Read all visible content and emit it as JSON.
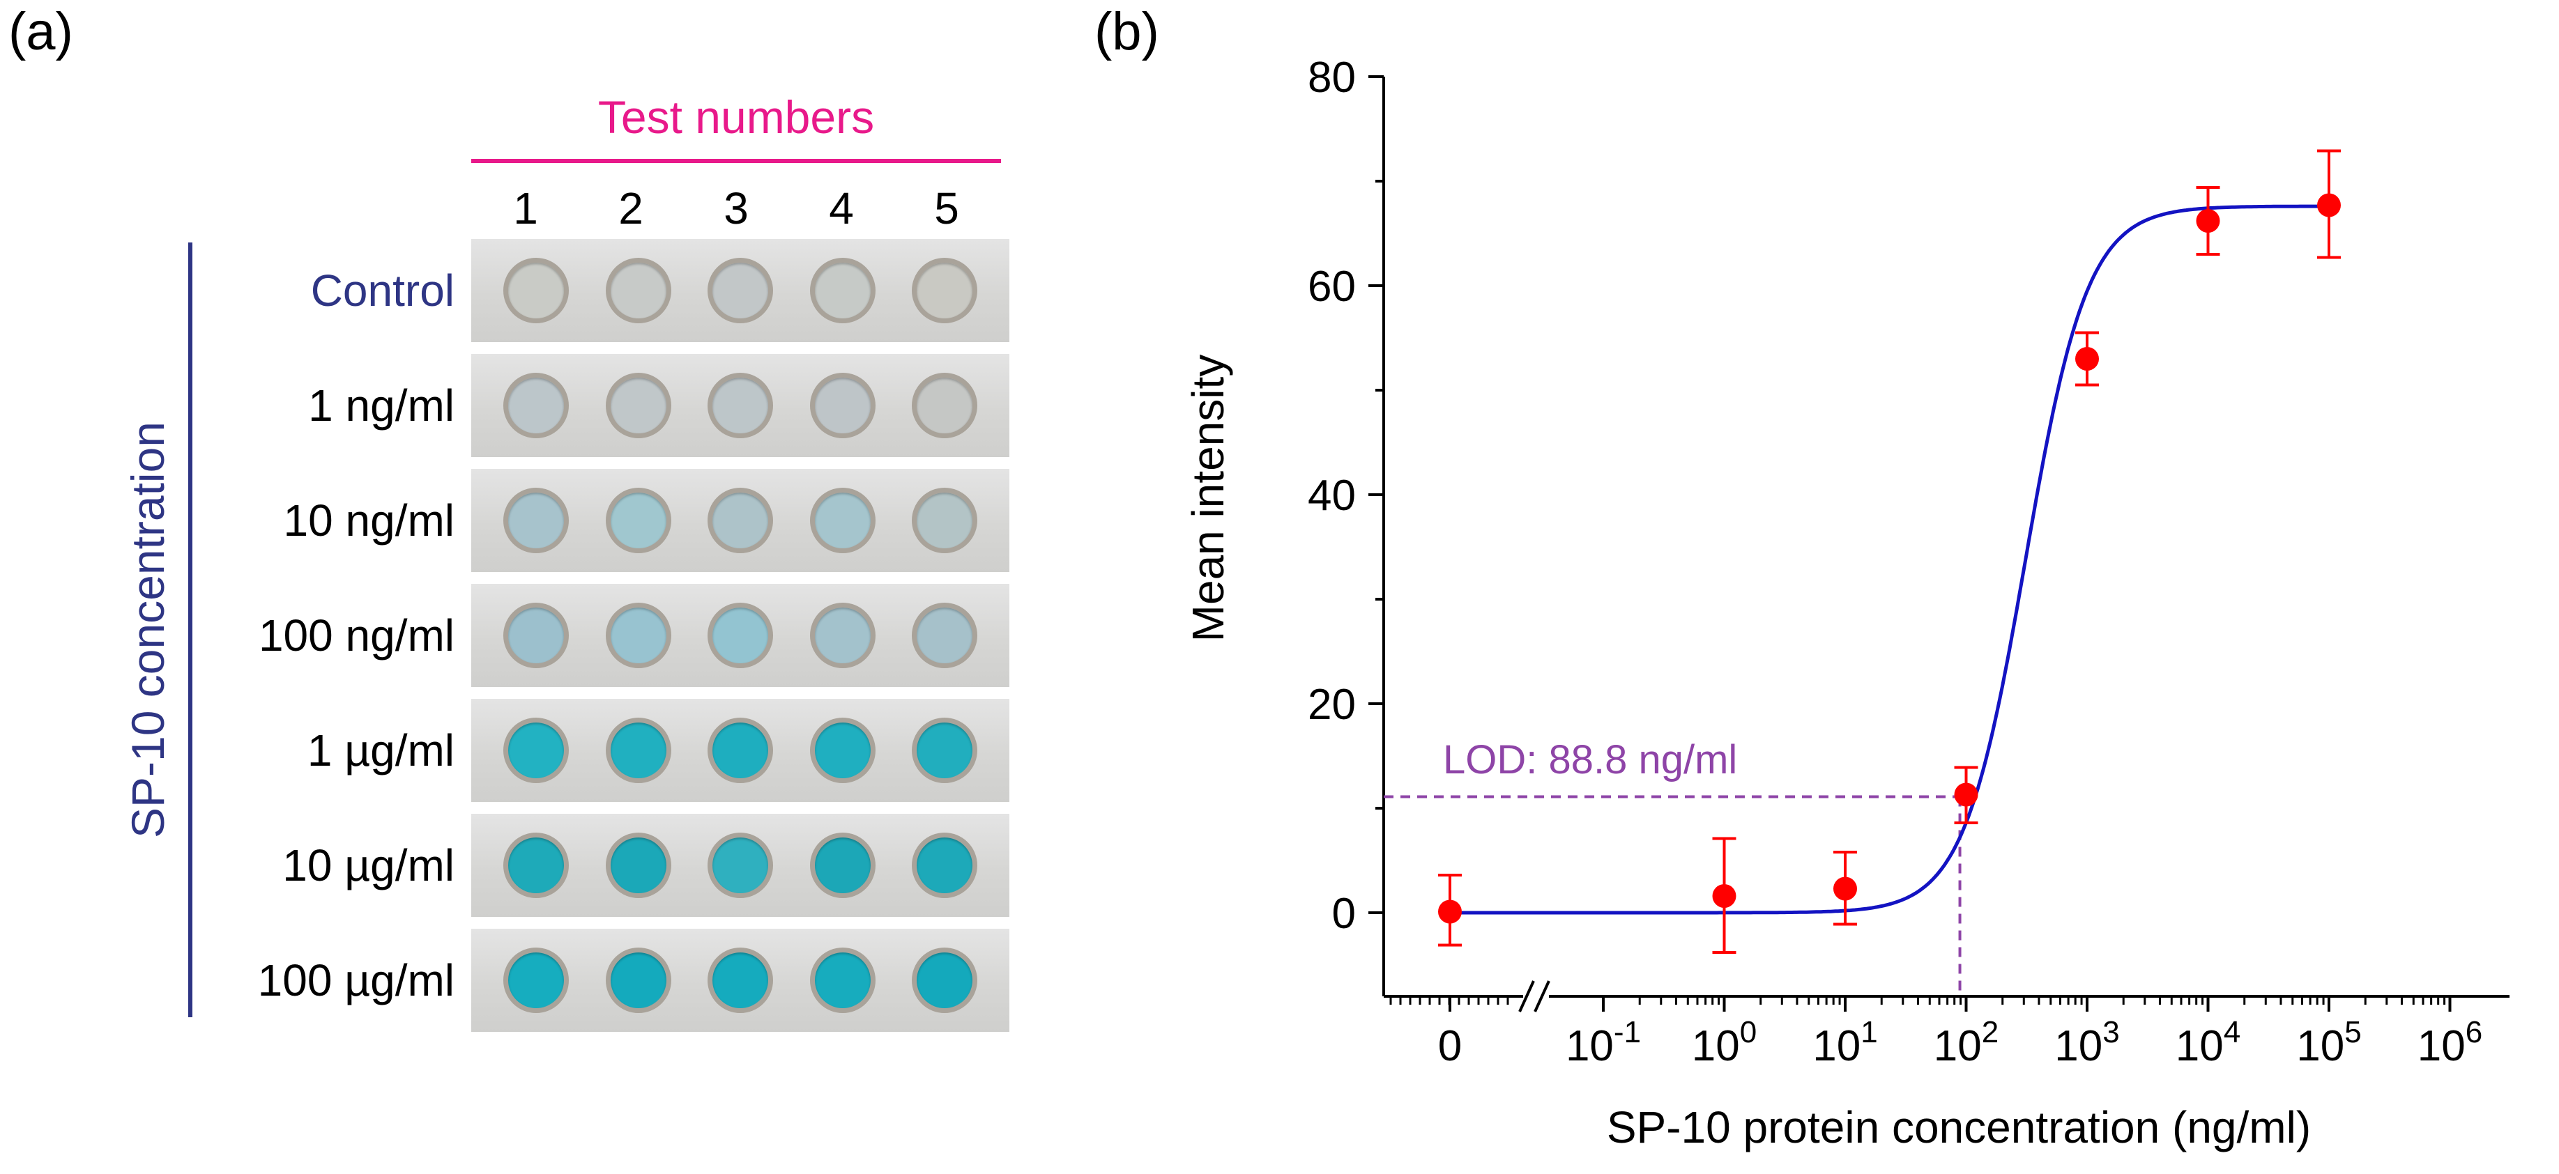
{
  "panel_a": {
    "label": "(a)",
    "column_header": "Test numbers",
    "test_numbers": [
      "1",
      "2",
      "3",
      "4",
      "5"
    ],
    "row_axis_title": "SP-10 concentration",
    "rows": [
      {
        "label": "Control",
        "wells": [
          "#c9cbc6",
          "#c7cac8",
          "#c2c7c8",
          "#c6cac7",
          "#c9c9c3"
        ]
      },
      {
        "label": "1 ng/ml",
        "wells": [
          "#bcc6ca",
          "#c0c7c9",
          "#bdc6c9",
          "#bec5c8",
          "#c5c7c5"
        ]
      },
      {
        "label": "10 ng/ml",
        "wells": [
          "#a7c3cc",
          "#a0c7cf",
          "#adc3c9",
          "#a5c5cd",
          "#b3c4c6"
        ]
      },
      {
        "label": "100 ng/ml",
        "wells": [
          "#9cc0cd",
          "#98c3d0",
          "#93c4d1",
          "#a3c2cc",
          "#a6c1ca"
        ]
      },
      {
        "label": "1 µg/ml",
        "wells": [
          "#22b2c2",
          "#20b0c0",
          "#1eaebf",
          "#1fafc0",
          "#21aebe"
        ]
      },
      {
        "label": "10 µg/ml",
        "wells": [
          "#1eaab9",
          "#1ba8b8",
          "#2fb0bf",
          "#1ca7b7",
          "#1da9b9"
        ]
      },
      {
        "label": "100 µg/ml",
        "wells": [
          "#16adbf",
          "#14aabd",
          "#15abbe",
          "#17acbe",
          "#14a9bc"
        ]
      }
    ],
    "colors": {
      "header": "#e8198a",
      "axis": "#2e3584"
    }
  },
  "panel_b": {
    "label": "(b)",
    "lod_text": "LOD: 88.8 ng/ml"
  },
  "chart_data": {
    "type": "scatter",
    "xlabel": "SP-10 protein concentration (ng/ml)",
    "ylabel": "Mean intensity",
    "x_scale": "log (broken axis at 0)",
    "x_ticks": [
      "0",
      "10-1",
      "100",
      "101",
      "102",
      "103",
      "104",
      "105",
      "106"
    ],
    "y_ticks": [
      0,
      20,
      40,
      60,
      80
    ],
    "ylim": [
      -8,
      80
    ],
    "series": [
      {
        "x": [
          0,
          1,
          10,
          100,
          1000,
          10000,
          100000
        ],
        "y": [
          0.1,
          1.6,
          2.3,
          11.3,
          53.0,
          66.2,
          67.7
        ],
        "err_plus": [
          3.5,
          5.5,
          3.5,
          2.6,
          2.5,
          3.2,
          5.2
        ],
        "err_minus": [
          3.2,
          5.4,
          3.4,
          2.7,
          2.5,
          3.2,
          5.0
        ],
        "color": "#ff0000"
      }
    ],
    "fit_curve": {
      "color": "#1313c2",
      "bottom": 0,
      "top": 67.6,
      "ec50": 310,
      "hill": 1.7
    },
    "lod": {
      "x": 88.8,
      "y": 11.1,
      "color": "#8e44a7"
    }
  }
}
